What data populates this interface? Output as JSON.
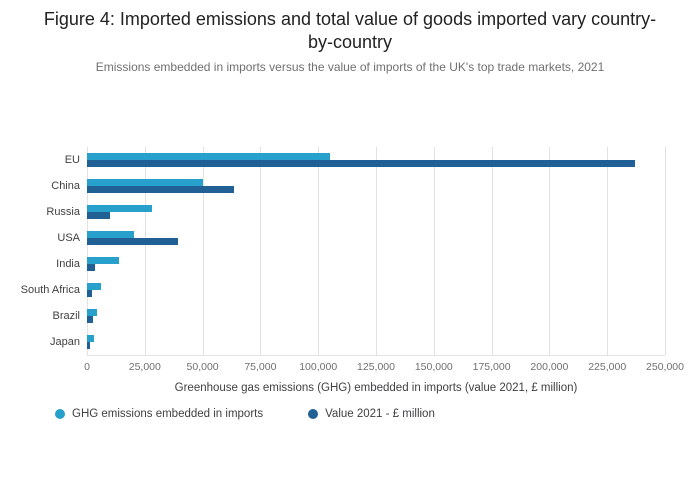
{
  "title": "Figure 4: Imported emissions and total value of goods imported vary country-by-country",
  "subtitle": "Emissions embedded in imports versus the value of imports of the UK's top trade markets, 2021",
  "chart_data": {
    "type": "bar",
    "orientation": "horizontal",
    "categories": [
      "EU",
      "China",
      "Russia",
      "USA",
      "India",
      "South Africa",
      "Brazil",
      "Japan"
    ],
    "series": [
      {
        "key": "ghg-emissions",
        "name": "GHG emissions embedded in imports",
        "color": "#27A0CC",
        "values": [
          105000,
          50000,
          28000,
          20500,
          14000,
          6000,
          4500,
          3000
        ]
      },
      {
        "key": "value-2021",
        "name": "Value 2021 - £ million",
        "color": "#206095",
        "values": [
          237000,
          63500,
          10000,
          39500,
          3500,
          2000,
          2500,
          1500
        ]
      }
    ],
    "xlabel": "Greenhouse gas emissions (GHG) embedded in imports (value 2021, £ million)",
    "xlim": [
      0,
      250000
    ],
    "xticks": [
      0,
      25000,
      50000,
      75000,
      100000,
      125000,
      150000,
      175000,
      200000,
      225000,
      250000
    ],
    "xtick_labels": [
      "0",
      "25,000",
      "50,000",
      "75,000",
      "100,000",
      "125,000",
      "150,000",
      "175,000",
      "200,000",
      "225,000",
      "250,000"
    ],
    "grid": true,
    "gridline_color": "#e2e2e2",
    "legend_position": "bottom-left"
  }
}
